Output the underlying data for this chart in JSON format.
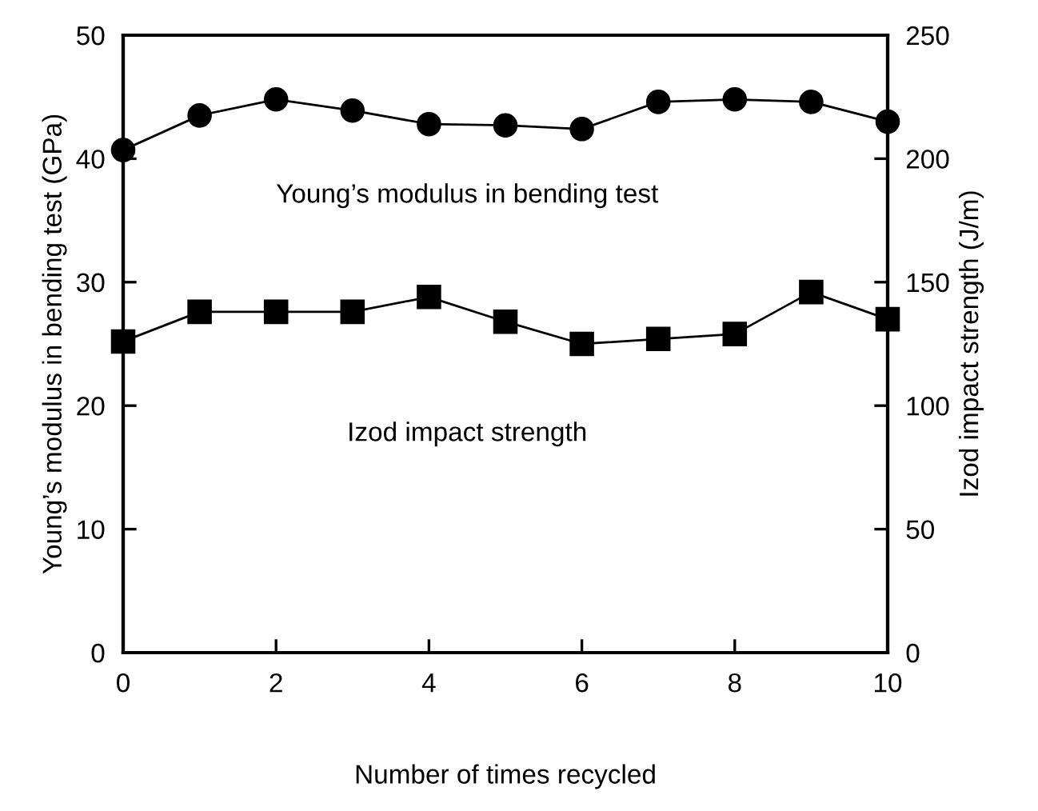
{
  "chart_data": {
    "type": "line",
    "xlabel": "Number of times recycled",
    "ylabel": "Young’s modulus in bending test (GPa)",
    "y2label": "Izod impact strength (J/m)",
    "x": [
      0,
      1,
      2,
      3,
      4,
      5,
      6,
      7,
      8,
      9,
      10
    ],
    "series": [
      {
        "color": "#000000",
        "marker": "circle",
        "values": [
          40.7,
          43.5,
          44.8,
          43.9,
          42.8,
          42.7,
          42.4,
          44.6,
          44.8,
          44.6,
          43.0
        ]
      },
      {
        "color": "#000000",
        "marker": "square",
        "axis": "y2",
        "values": [
          126,
          138,
          138,
          138,
          144,
          134,
          125,
          127,
          129,
          146,
          135
        ]
      }
    ],
    "xlim": [
      0,
      10
    ],
    "xticks": [
      0,
      2,
      4,
      6,
      8,
      10
    ],
    "ylim": [
      0,
      50
    ],
    "yticks": [
      0,
      10,
      20,
      30,
      40,
      50
    ],
    "y2lim": [
      0,
      250
    ],
    "y2ticks": [
      0,
      50,
      100,
      150,
      200,
      250
    ],
    "annotations": [
      "Young’s modulus in bending test",
      "Izod impact strength"
    ],
    "grid": false,
    "legend": false,
    "line_style": "solid"
  }
}
